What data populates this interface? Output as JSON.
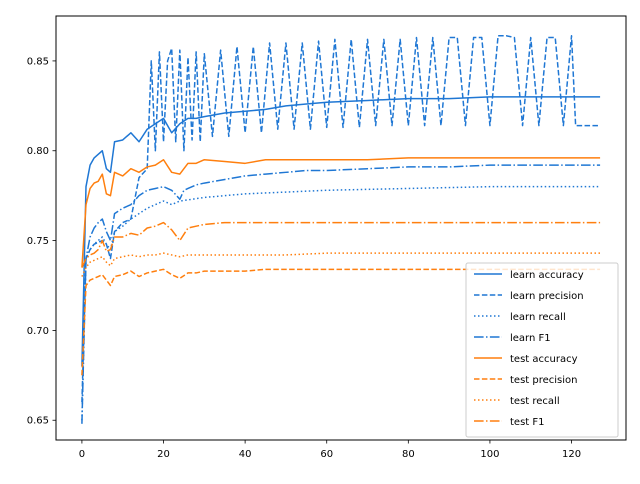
{
  "chart_data": {
    "type": "line",
    "title": "",
    "xlabel": "",
    "ylabel": "",
    "xlim": [
      -6.35,
      133.35
    ],
    "ylim": [
      0.639,
      0.875
    ],
    "x_ticks": [
      0,
      20,
      40,
      60,
      80,
      100,
      120
    ],
    "y_ticks": [
      0.65,
      0.7,
      0.75,
      0.8,
      0.85
    ],
    "y_tick_labels": [
      "0.65",
      "0.70",
      "0.75",
      "0.80",
      "0.85"
    ],
    "grid": false,
    "legend_position": "lower-right",
    "colors": {
      "learn": "#1f77d4",
      "test": "#ff7f0e"
    },
    "series": [
      {
        "name": "learn accuracy",
        "group": "learn",
        "dash": "solid",
        "x": [
          0,
          1,
          2,
          3,
          4,
          5,
          6,
          7,
          8,
          10,
          12,
          14,
          16,
          18,
          20,
          22,
          24,
          26,
          28,
          30,
          35,
          40,
          45,
          50,
          55,
          60,
          70,
          80,
          90,
          100,
          110,
          120,
          127
        ],
        "y": [
          0.68,
          0.78,
          0.792,
          0.796,
          0.798,
          0.8,
          0.79,
          0.788,
          0.805,
          0.806,
          0.81,
          0.805,
          0.812,
          0.815,
          0.818,
          0.81,
          0.815,
          0.818,
          0.818,
          0.819,
          0.821,
          0.822,
          0.823,
          0.825,
          0.826,
          0.827,
          0.828,
          0.829,
          0.829,
          0.83,
          0.83,
          0.83,
          0.83
        ]
      },
      {
        "name": "learn precision",
        "group": "learn",
        "dash": "dashed",
        "x": [
          0,
          1,
          2,
          3,
          5,
          6,
          7,
          8,
          10,
          12,
          14,
          16,
          17,
          18,
          19,
          20,
          21,
          22,
          23,
          24,
          25,
          26,
          27,
          28,
          29,
          30,
          32,
          34,
          36,
          38,
          40,
          42,
          44,
          46,
          48,
          50,
          52,
          54,
          56,
          58,
          60,
          62,
          64,
          66,
          68,
          70,
          72,
          74,
          76,
          78,
          80,
          82,
          84,
          86,
          88,
          90,
          92,
          94,
          96,
          98,
          100,
          102,
          104,
          106,
          108,
          110,
          112,
          114,
          116,
          118,
          120,
          121,
          124,
          127
        ],
        "y": [
          0.66,
          0.74,
          0.745,
          0.748,
          0.75,
          0.748,
          0.74,
          0.755,
          0.76,
          0.762,
          0.785,
          0.79,
          0.85,
          0.8,
          0.855,
          0.805,
          0.85,
          0.857,
          0.805,
          0.856,
          0.8,
          0.852,
          0.806,
          0.855,
          0.805,
          0.854,
          0.808,
          0.856,
          0.808,
          0.858,
          0.81,
          0.858,
          0.81,
          0.86,
          0.812,
          0.86,
          0.812,
          0.86,
          0.812,
          0.861,
          0.813,
          0.862,
          0.813,
          0.862,
          0.813,
          0.862,
          0.814,
          0.862,
          0.814,
          0.862,
          0.814,
          0.863,
          0.814,
          0.863,
          0.814,
          0.863,
          0.863,
          0.814,
          0.863,
          0.863,
          0.814,
          0.864,
          0.864,
          0.863,
          0.814,
          0.863,
          0.814,
          0.863,
          0.863,
          0.814,
          0.864,
          0.814,
          0.814,
          0.814
        ]
      },
      {
        "name": "learn recall",
        "group": "learn",
        "dash": "dotted",
        "x": [
          0,
          1,
          2,
          3,
          4,
          5,
          6,
          7,
          8,
          10,
          12,
          14,
          16,
          18,
          20,
          22,
          24,
          30,
          40,
          50,
          60,
          80,
          100,
          127
        ],
        "y": [
          0.65,
          0.74,
          0.745,
          0.748,
          0.75,
          0.752,
          0.748,
          0.745,
          0.755,
          0.758,
          0.762,
          0.765,
          0.768,
          0.77,
          0.772,
          0.77,
          0.772,
          0.774,
          0.776,
          0.777,
          0.778,
          0.779,
          0.78,
          0.78
        ]
      },
      {
        "name": "learn F1",
        "group": "learn",
        "dash": "dashdot",
        "x": [
          0,
          1,
          2,
          3,
          4,
          5,
          6,
          7,
          8,
          10,
          12,
          14,
          16,
          18,
          20,
          22,
          24,
          25,
          26,
          28,
          30,
          35,
          40,
          45,
          50,
          55,
          60,
          70,
          80,
          90,
          100,
          110,
          120,
          127
        ],
        "y": [
          0.648,
          0.74,
          0.752,
          0.757,
          0.76,
          0.762,
          0.755,
          0.75,
          0.765,
          0.768,
          0.77,
          0.775,
          0.778,
          0.779,
          0.78,
          0.778,
          0.773,
          0.778,
          0.779,
          0.781,
          0.782,
          0.784,
          0.786,
          0.787,
          0.788,
          0.789,
          0.789,
          0.79,
          0.791,
          0.791,
          0.792,
          0.792,
          0.792,
          0.792
        ]
      },
      {
        "name": "test accuracy",
        "group": "test",
        "dash": "solid",
        "x": [
          0,
          1,
          2,
          3,
          4,
          5,
          6,
          7,
          8,
          10,
          12,
          14,
          16,
          18,
          20,
          22,
          24,
          26,
          28,
          30,
          35,
          40,
          45,
          50,
          55,
          60,
          70,
          80,
          90,
          100,
          110,
          120,
          127
        ],
        "y": [
          0.735,
          0.77,
          0.779,
          0.782,
          0.783,
          0.787,
          0.776,
          0.775,
          0.788,
          0.786,
          0.79,
          0.788,
          0.791,
          0.792,
          0.795,
          0.788,
          0.787,
          0.793,
          0.793,
          0.795,
          0.794,
          0.793,
          0.795,
          0.795,
          0.795,
          0.795,
          0.795,
          0.796,
          0.796,
          0.796,
          0.796,
          0.796,
          0.796
        ]
      },
      {
        "name": "test precision",
        "group": "test",
        "dash": "dashed",
        "x": [
          0,
          1,
          2,
          3,
          4,
          5,
          6,
          7,
          8,
          10,
          12,
          14,
          16,
          18,
          20,
          22,
          24,
          26,
          28,
          30,
          35,
          40,
          45,
          50,
          55,
          60,
          70,
          80,
          90,
          100,
          110,
          120,
          127
        ],
        "y": [
          0.675,
          0.725,
          0.728,
          0.729,
          0.73,
          0.731,
          0.728,
          0.725,
          0.73,
          0.731,
          0.733,
          0.73,
          0.732,
          0.733,
          0.734,
          0.731,
          0.729,
          0.732,
          0.732,
          0.733,
          0.733,
          0.733,
          0.734,
          0.734,
          0.734,
          0.734,
          0.734,
          0.734,
          0.734,
          0.734,
          0.734,
          0.734,
          0.734
        ]
      },
      {
        "name": "test recall",
        "group": "test",
        "dash": "dotted",
        "x": [
          0,
          1,
          2,
          3,
          4,
          5,
          6,
          7,
          8,
          10,
          12,
          14,
          16,
          18,
          20,
          22,
          24,
          26,
          30,
          40,
          50,
          60,
          80,
          100,
          127
        ],
        "y": [
          0.73,
          0.735,
          0.738,
          0.739,
          0.74,
          0.741,
          0.738,
          0.736,
          0.74,
          0.741,
          0.742,
          0.741,
          0.742,
          0.742,
          0.743,
          0.742,
          0.741,
          0.742,
          0.742,
          0.742,
          0.742,
          0.743,
          0.743,
          0.743,
          0.743
        ]
      },
      {
        "name": "test F1",
        "group": "test",
        "dash": "dashdot",
        "x": [
          0,
          1,
          2,
          3,
          4,
          5,
          6,
          7,
          8,
          10,
          12,
          14,
          16,
          18,
          20,
          22,
          24,
          26,
          28,
          30,
          35,
          40,
          45,
          50,
          55,
          60,
          70,
          80,
          90,
          100,
          110,
          120,
          127
        ],
        "y": [
          0.735,
          0.74,
          0.742,
          0.743,
          0.745,
          0.75,
          0.744,
          0.745,
          0.752,
          0.752,
          0.754,
          0.753,
          0.757,
          0.758,
          0.76,
          0.756,
          0.75,
          0.757,
          0.758,
          0.759,
          0.76,
          0.76,
          0.76,
          0.76,
          0.76,
          0.76,
          0.76,
          0.76,
          0.76,
          0.76,
          0.76,
          0.76,
          0.76
        ]
      }
    ]
  }
}
